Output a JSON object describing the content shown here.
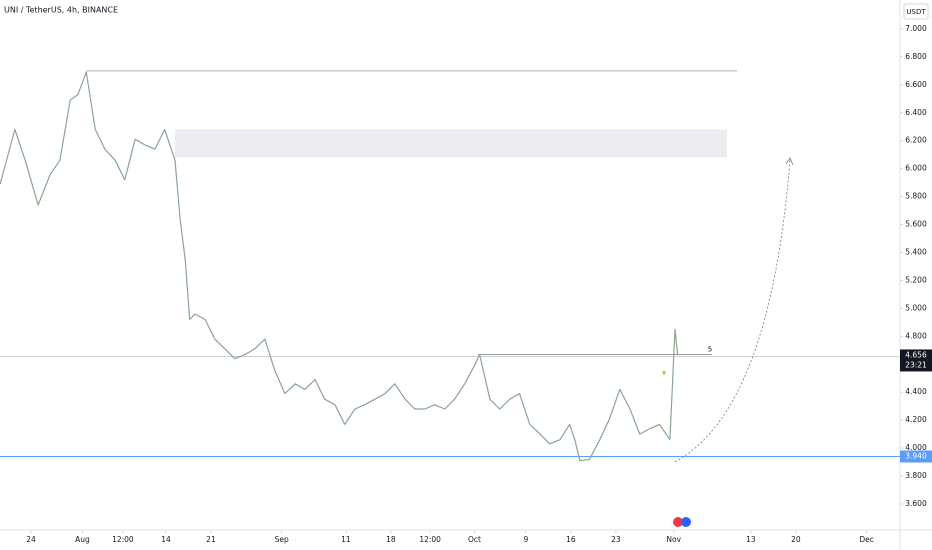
{
  "header": {
    "symbol": "UNI / TetherUS, 4h, BINANCE",
    "currency": "USDT"
  },
  "chart_data": {
    "type": "line",
    "series": [
      {
        "name": "UNI / TetherUS",
        "color": "#8aa68c",
        "x": [
          -4.8,
          -2.5,
          -0.9,
          1.1,
          3.0,
          4.5,
          6.1,
          7.3,
          8.6,
          10.0,
          11.5,
          13.1,
          14.6,
          16.2,
          17.7,
          19.3,
          20.8,
          22.4,
          23.2,
          24.0,
          24.7,
          25.5,
          27.1,
          28.6,
          30.2,
          31.7,
          33.3,
          34.8,
          36.4,
          37.9,
          39.5,
          41.1,
          42.6,
          44.2,
          45.7,
          47.3,
          48.8,
          50.4,
          51.9,
          53.5,
          55.1,
          56.6,
          58.2,
          59.7,
          61.3,
          62.8,
          64.4,
          65.9,
          67.5,
          69.1,
          69.8,
          71.4,
          72.9,
          74.5,
          76.0,
          77.6,
          79.2,
          80.7,
          82.3,
          83.8,
          84.6,
          85.4,
          86.9,
          88.5,
          90.0,
          91.6,
          93.2,
          94.7,
          96.3,
          97.8,
          99.4,
          100.2,
          100.6
        ],
        "values": [
          5.89,
          6.28,
          6.06,
          5.74,
          5.96,
          6.06,
          6.49,
          6.53,
          6.69,
          6.28,
          6.14,
          6.06,
          5.92,
          6.21,
          6.17,
          6.14,
          6.28,
          6.06,
          5.64,
          5.35,
          4.92,
          4.96,
          4.92,
          4.78,
          4.71,
          4.64,
          4.67,
          4.71,
          4.78,
          4.56,
          4.39,
          4.46,
          4.42,
          4.49,
          4.35,
          4.31,
          4.17,
          4.28,
          4.31,
          4.35,
          4.39,
          4.46,
          4.35,
          4.28,
          4.28,
          4.31,
          4.28,
          4.35,
          4.46,
          4.6,
          4.67,
          4.35,
          4.28,
          4.35,
          4.39,
          4.17,
          4.1,
          4.03,
          4.06,
          4.17,
          4.06,
          3.91,
          3.92,
          4.06,
          4.21,
          4.42,
          4.28,
          4.1,
          4.14,
          4.17,
          4.06,
          4.85,
          4.67
        ]
      }
    ],
    "xlim": [
      -4.82,
      135.2
    ],
    "xticks": [
      {
        "value": 0,
        "label": "24"
      },
      {
        "value": 8,
        "label": "Aug"
      },
      {
        "value": 14.3,
        "label": "12:00"
      },
      {
        "value": 21,
        "label": "14"
      },
      {
        "value": 28,
        "label": "21"
      },
      {
        "value": 39,
        "label": "Sep"
      },
      {
        "value": 49,
        "label": "11"
      },
      {
        "value": 56,
        "label": "18"
      },
      {
        "value": 62.1,
        "label": "12:00"
      },
      {
        "value": 69,
        "label": "Oct"
      },
      {
        "value": 77,
        "label": "9"
      },
      {
        "value": 84,
        "label": "16"
      },
      {
        "value": 91,
        "label": "23"
      },
      {
        "value": 100,
        "label": "Nov"
      },
      {
        "value": 112,
        "label": "13"
      },
      {
        "value": 119,
        "label": "20"
      },
      {
        "value": 130,
        "label": "Dec"
      }
    ],
    "ylim": [
      3.414,
      7.207
    ],
    "yticks": [
      {
        "value": 3.6,
        "label": "3.600"
      },
      {
        "value": 3.8,
        "label": "3.800"
      },
      {
        "value": 4.0,
        "label": "4.000"
      },
      {
        "value": 4.2,
        "label": "4.200"
      },
      {
        "value": 4.4,
        "label": "4.400"
      },
      {
        "value": 4.6,
        "label": "4.600"
      },
      {
        "value": 4.8,
        "label": "4.800"
      },
      {
        "value": 5.0,
        "label": "5.000"
      },
      {
        "value": 5.2,
        "label": "5.200"
      },
      {
        "value": 5.4,
        "label": "5.400"
      },
      {
        "value": 5.6,
        "label": "5.600"
      },
      {
        "value": 5.8,
        "label": "5.800"
      },
      {
        "value": 6.0,
        "label": "6.000"
      },
      {
        "value": 6.2,
        "label": "6.200"
      },
      {
        "value": 6.4,
        "label": "6.400"
      },
      {
        "value": 6.6,
        "label": "6.600"
      },
      {
        "value": 6.8,
        "label": "6.800"
      },
      {
        "value": 7.0,
        "label": "7.000"
      }
    ],
    "grid": false,
    "resistance": 6.7,
    "zone": [
      6.08,
      6.28
    ],
    "level": {
      "value": 4.67,
      "label": "5"
    },
    "last_price": {
      "value": 4.656,
      "label": "4.656"
    },
    "countdown": "23:21",
    "support": {
      "value": 3.94,
      "label": "3.940",
      "color": "#5b9cf6"
    }
  }
}
